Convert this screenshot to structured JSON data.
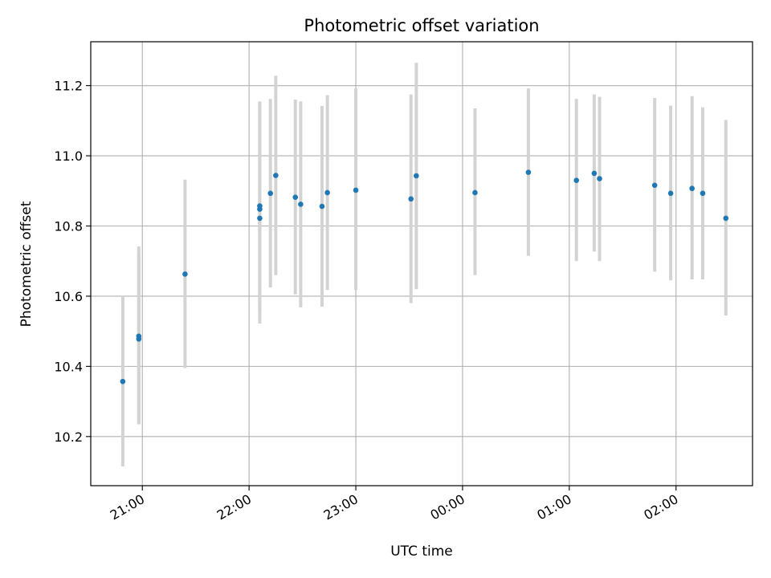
{
  "chart_data": {
    "type": "scatter",
    "title": "Photometric offset variation",
    "xlabel": "UTC time",
    "ylabel": "Photometric offset",
    "x_axis_type": "time",
    "x_ticks": [
      "21:00",
      "22:00",
      "23:00",
      "00:00",
      "01:00",
      "02:00"
    ],
    "y_ticks": [
      "10.2",
      "10.4",
      "10.6",
      "10.8",
      "11.0",
      "11.2"
    ],
    "xlim": [
      "20:31",
      "02:43"
    ],
    "ylim": [
      10.06,
      11.325
    ],
    "grid": true,
    "marker_color": "#1f77b4",
    "errorbar_color": "#d3d3d3",
    "series": [
      {
        "points": [
          {
            "x": "20:49",
            "y": 10.357,
            "lo": 10.115,
            "hi": 10.6
          },
          {
            "x": "20:58",
            "y": 10.486,
            "lo": 10.235,
            "hi": 10.742
          },
          {
            "x": "20:58",
            "y": 10.478,
            "lo": 10.235,
            "hi": 10.722
          },
          {
            "x": "21:24",
            "y": 10.663,
            "lo": 10.395,
            "hi": 10.932
          },
          {
            "x": "22:06",
            "y": 10.848,
            "lo": 10.557,
            "hi": 11.15
          },
          {
            "x": "22:06",
            "y": 10.857,
            "lo": 10.557,
            "hi": 11.155
          },
          {
            "x": "22:06",
            "y": 10.822,
            "lo": 10.522,
            "hi": 11.14
          },
          {
            "x": "22:12",
            "y": 10.893,
            "lo": 10.625,
            "hi": 11.162
          },
          {
            "x": "22:15",
            "y": 10.944,
            "lo": 10.66,
            "hi": 11.228
          },
          {
            "x": "22:26",
            "y": 10.882,
            "lo": 10.605,
            "hi": 11.16
          },
          {
            "x": "22:29",
            "y": 10.862,
            "lo": 10.568,
            "hi": 11.155
          },
          {
            "x": "22:41",
            "y": 10.856,
            "lo": 10.57,
            "hi": 11.142
          },
          {
            "x": "22:44",
            "y": 10.895,
            "lo": 10.618,
            "hi": 11.173
          },
          {
            "x": "23:00",
            "y": 10.902,
            "lo": 10.618,
            "hi": 11.192
          },
          {
            "x": "23:31",
            "y": 10.877,
            "lo": 10.58,
            "hi": 11.175
          },
          {
            "x": "23:34",
            "y": 10.943,
            "lo": 10.62,
            "hi": 11.265
          },
          {
            "x": "00:07",
            "y": 10.895,
            "lo": 10.66,
            "hi": 11.135
          },
          {
            "x": "00:37",
            "y": 10.953,
            "lo": 10.715,
            "hi": 11.192
          },
          {
            "x": "01:04",
            "y": 10.93,
            "lo": 10.7,
            "hi": 11.162
          },
          {
            "x": "01:14",
            "y": 10.95,
            "lo": 10.727,
            "hi": 11.175
          },
          {
            "x": "01:17",
            "y": 10.935,
            "lo": 10.7,
            "hi": 11.168
          },
          {
            "x": "01:48",
            "y": 10.916,
            "lo": 10.67,
            "hi": 11.165
          },
          {
            "x": "01:57",
            "y": 10.893,
            "lo": 10.645,
            "hi": 11.143
          },
          {
            "x": "02:09",
            "y": 10.907,
            "lo": 10.648,
            "hi": 11.17
          },
          {
            "x": "02:15",
            "y": 10.893,
            "lo": 10.648,
            "hi": 11.138
          },
          {
            "x": "02:28",
            "y": 10.822,
            "lo": 10.545,
            "hi": 11.102
          }
        ]
      }
    ]
  }
}
